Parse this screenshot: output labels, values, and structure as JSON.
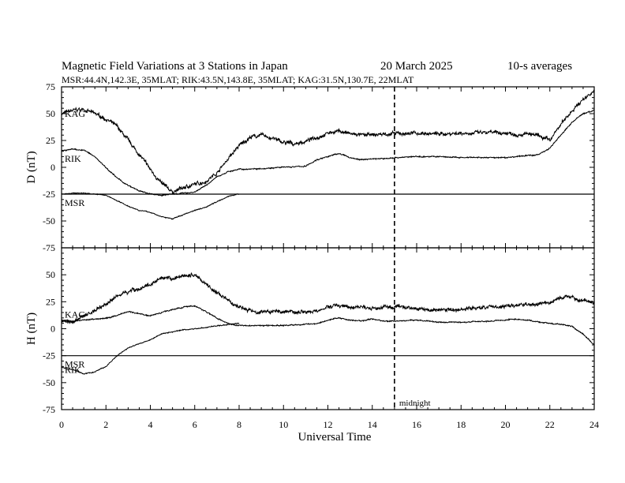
{
  "chart_data": {
    "type": "line",
    "title": "Magnetic Field Variations at 3 Stations in Japan",
    "date": "20 March   2025",
    "averaging": "10-s averages",
    "stations_line": "MSR:44.4N,142.3E, 35MLAT;  RIK:43.5N,143.8E, 35MLAT;  KAG:31.5N,130.7E, 22MLAT",
    "xlabel": "Universal Time",
    "xlim": [
      0,
      24
    ],
    "xticks": [
      0,
      2,
      4,
      6,
      8,
      10,
      12,
      14,
      16,
      18,
      20,
      22,
      24
    ],
    "midnight_ut": 15,
    "midnight_label": "midnight",
    "panels": [
      {
        "id": "D",
        "ylabel": "D (nT)",
        "ylim": [
          -75,
          75
        ],
        "yticks": [
          75,
          50,
          25,
          0,
          -25,
          -50,
          -75
        ],
        "series": [
          {
            "name": "KAG",
            "noise": 2.5,
            "x": [
              0,
              0.5,
              1,
              1.5,
              2,
              2.5,
              3,
              3.5,
              4,
              4.5,
              5,
              5.5,
              6,
              6.5,
              7,
              7.5,
              8,
              8.5,
              9,
              9.5,
              10,
              10.5,
              11,
              11.5,
              12,
              12.5,
              13,
              13.5,
              14,
              14.5,
              15,
              16,
              17,
              18,
              19,
              20,
              20.5,
              21,
              21.5,
              22,
              22.5,
              23,
              23.5,
              24
            ],
            "y": [
              50,
              53,
              54,
              50,
              45,
              38,
              25,
              12,
              -2,
              -15,
              -23,
              -19,
              -16,
              -13,
              -5,
              8,
              20,
              28,
              30,
              27,
              23,
              22,
              24,
              28,
              32,
              34,
              31,
              30,
              30,
              31,
              31,
              32,
              31,
              32,
              32,
              32,
              31,
              31,
              29,
              25,
              40,
              53,
              63,
              72
            ]
          },
          {
            "name": "RIK",
            "noise": 0.8,
            "x": [
              0,
              0.5,
              1,
              1.5,
              2,
              2.5,
              3,
              3.5,
              4,
              4.5,
              5,
              5.5,
              6,
              6.5,
              7,
              7.5,
              8,
              9,
              10,
              11,
              11.5,
              12,
              12.5,
              13,
              13.5,
              14,
              14.5,
              15,
              16,
              17,
              18,
              19,
              20,
              20.5,
              21,
              21.5,
              22,
              22.5,
              23,
              23.5,
              24
            ],
            "y": [
              15,
              17,
              16,
              10,
              0,
              -10,
              -17,
              -22,
              -25,
              -26,
              -25,
              -24,
              -23,
              -17,
              -9,
              -4,
              -2,
              -1,
              0,
              1,
              7,
              10,
              13,
              9,
              7,
              8,
              8,
              9,
              10,
              10,
              9,
              9,
              9,
              10,
              11,
              12,
              18,
              30,
              42,
              50,
              53
            ]
          },
          {
            "name": "MSR",
            "noise": 0.6,
            "x": [
              0,
              0.5,
              1,
              1.5,
              2,
              2.5,
              3,
              3.5,
              4,
              4.5,
              5,
              5.5,
              6,
              6.5,
              7,
              7.5,
              8
            ],
            "y": [
              -25,
              -24,
              -24,
              -25,
              -26,
              -31,
              -36,
              -40,
              -42,
              -46,
              -48,
              -44,
              -40,
              -37,
              -32,
              -27,
              -25
            ]
          }
        ],
        "baseline": -25,
        "labels": [
          {
            "name": "KAG",
            "text": "KAG",
            "y": 50
          },
          {
            "name": "RIK",
            "text": "RIK",
            "y": 8
          },
          {
            "name": "MSR",
            "text": "MSR",
            "y": -33
          }
        ]
      },
      {
        "id": "H",
        "ylabel": "H (nT)",
        "ylim": [
          -75,
          75
        ],
        "yticks": [
          50,
          25,
          0,
          -25,
          -50,
          -75
        ],
        "series": [
          {
            "name": "KAG",
            "noise": 2.5,
            "x": [
              0,
              0.5,
              1,
              1.5,
              2,
              2.5,
              3,
              3.5,
              4,
              4.5,
              5,
              5.5,
              6,
              6.5,
              7,
              7.5,
              8,
              8.5,
              9,
              10,
              11,
              11.5,
              12,
              12.5,
              13,
              13.5,
              14,
              14.5,
              15,
              16,
              17,
              18,
              19,
              20,
              21,
              22,
              22.5,
              23,
              23.5,
              24
            ],
            "y": [
              8,
              6,
              12,
              17,
              23,
              30,
              35,
              37,
              41,
              46,
              46,
              49,
              50,
              42,
              33,
              26,
              20,
              17,
              16,
              16,
              16,
              16,
              20,
              22,
              19,
              21,
              18,
              20,
              20,
              19,
              17,
              18,
              20,
              21,
              22,
              24,
              29,
              29,
              26,
              24
            ]
          },
          {
            "name": "RIK",
            "noise": 0.8,
            "x": [
              0,
              0.5,
              1,
              1.5,
              2,
              2.5,
              3,
              3.5,
              4,
              4.5,
              5,
              5.5,
              6,
              6.5,
              7,
              7.5,
              8,
              8.5,
              9,
              10,
              11,
              11.5,
              12,
              12.5,
              13,
              13.5,
              14,
              14.5,
              15,
              16,
              17,
              18,
              19,
              20,
              20.5,
              21,
              21.5,
              22,
              22.5,
              23,
              23.5,
              24
            ],
            "y": [
              8,
              7,
              8,
              9,
              10,
              12,
              16,
              14,
              12,
              15,
              18,
              20,
              21,
              16,
              10,
              5,
              3,
              3,
              3,
              3,
              4,
              5,
              8,
              10,
              8,
              7,
              9,
              7,
              7,
              8,
              6,
              6,
              7,
              8,
              9,
              8,
              6,
              5,
              4,
              2,
              -5,
              -15
            ]
          },
          {
            "name": "MSR",
            "noise": 0.6,
            "x": [
              0,
              0.5,
              1,
              1.5,
              2,
              2.5,
              3,
              3.5,
              4,
              4.5,
              5,
              5.5,
              6,
              6.5,
              7,
              7.5,
              8
            ],
            "y": [
              -36,
              -38,
              -42,
              -40,
              -35,
              -25,
              -18,
              -14,
              -10,
              -5,
              -3,
              -1,
              0,
              1,
              3,
              4,
              5
            ]
          }
        ],
        "baseline": -25,
        "labels": [
          {
            "name": "KAG",
            "text": "KAG",
            "y": 13
          },
          {
            "name": "MSR",
            "text": "MSR",
            "y": -33
          },
          {
            "name": "RIK",
            "text": "RIK",
            "y": -38
          }
        ]
      }
    ]
  }
}
